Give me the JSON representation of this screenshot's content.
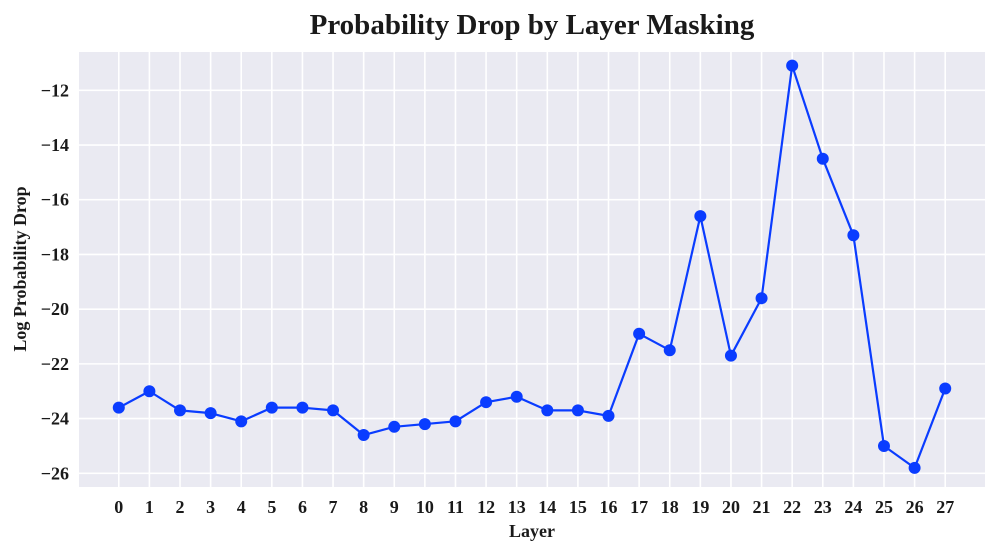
{
  "chart_data": {
    "type": "line",
    "title": "Probability Drop by Layer Masking",
    "xlabel": "Layer",
    "ylabel": "Log Probability Drop",
    "x": [
      0,
      1,
      2,
      3,
      4,
      5,
      6,
      7,
      8,
      9,
      10,
      11,
      12,
      13,
      14,
      15,
      16,
      17,
      18,
      19,
      20,
      21,
      22,
      23,
      24,
      25,
      26,
      27
    ],
    "series": [
      {
        "name": "",
        "values": [
          -23.6,
          -23.0,
          -23.7,
          -23.8,
          -24.1,
          -23.6,
          -23.6,
          -23.7,
          -24.6,
          -24.3,
          -24.2,
          -24.1,
          -23.4,
          -23.2,
          -23.7,
          -23.7,
          -23.9,
          -20.9,
          -21.5,
          -16.6,
          -21.7,
          -19.6,
          -11.1,
          -14.5,
          -17.3,
          -25.0,
          -25.8,
          -22.9
        ]
      }
    ],
    "yticks": [
      -26,
      -24,
      -22,
      -20,
      -18,
      -16,
      -14,
      -12
    ],
    "ytick_labels": [
      "−26",
      "−24",
      "−22",
      "−20",
      "−18",
      "−16",
      "−14",
      "−12"
    ],
    "xtick_labels": [
      "0",
      "1",
      "2",
      "3",
      "4",
      "5",
      "6",
      "7",
      "8",
      "9",
      "10",
      "11",
      "12",
      "13",
      "14",
      "15",
      "16",
      "17",
      "18",
      "19",
      "20",
      "21",
      "22",
      "23",
      "24",
      "25",
      "26",
      "27"
    ],
    "ylim": [
      -26.5,
      -10.6
    ],
    "xlim": [
      -1.3,
      28.3
    ],
    "grid": true,
    "colors": {
      "line": "#0a3cff",
      "marker": "#0a3cff",
      "plot_background": "#eaeaf2",
      "grid": "#ffffff"
    }
  }
}
